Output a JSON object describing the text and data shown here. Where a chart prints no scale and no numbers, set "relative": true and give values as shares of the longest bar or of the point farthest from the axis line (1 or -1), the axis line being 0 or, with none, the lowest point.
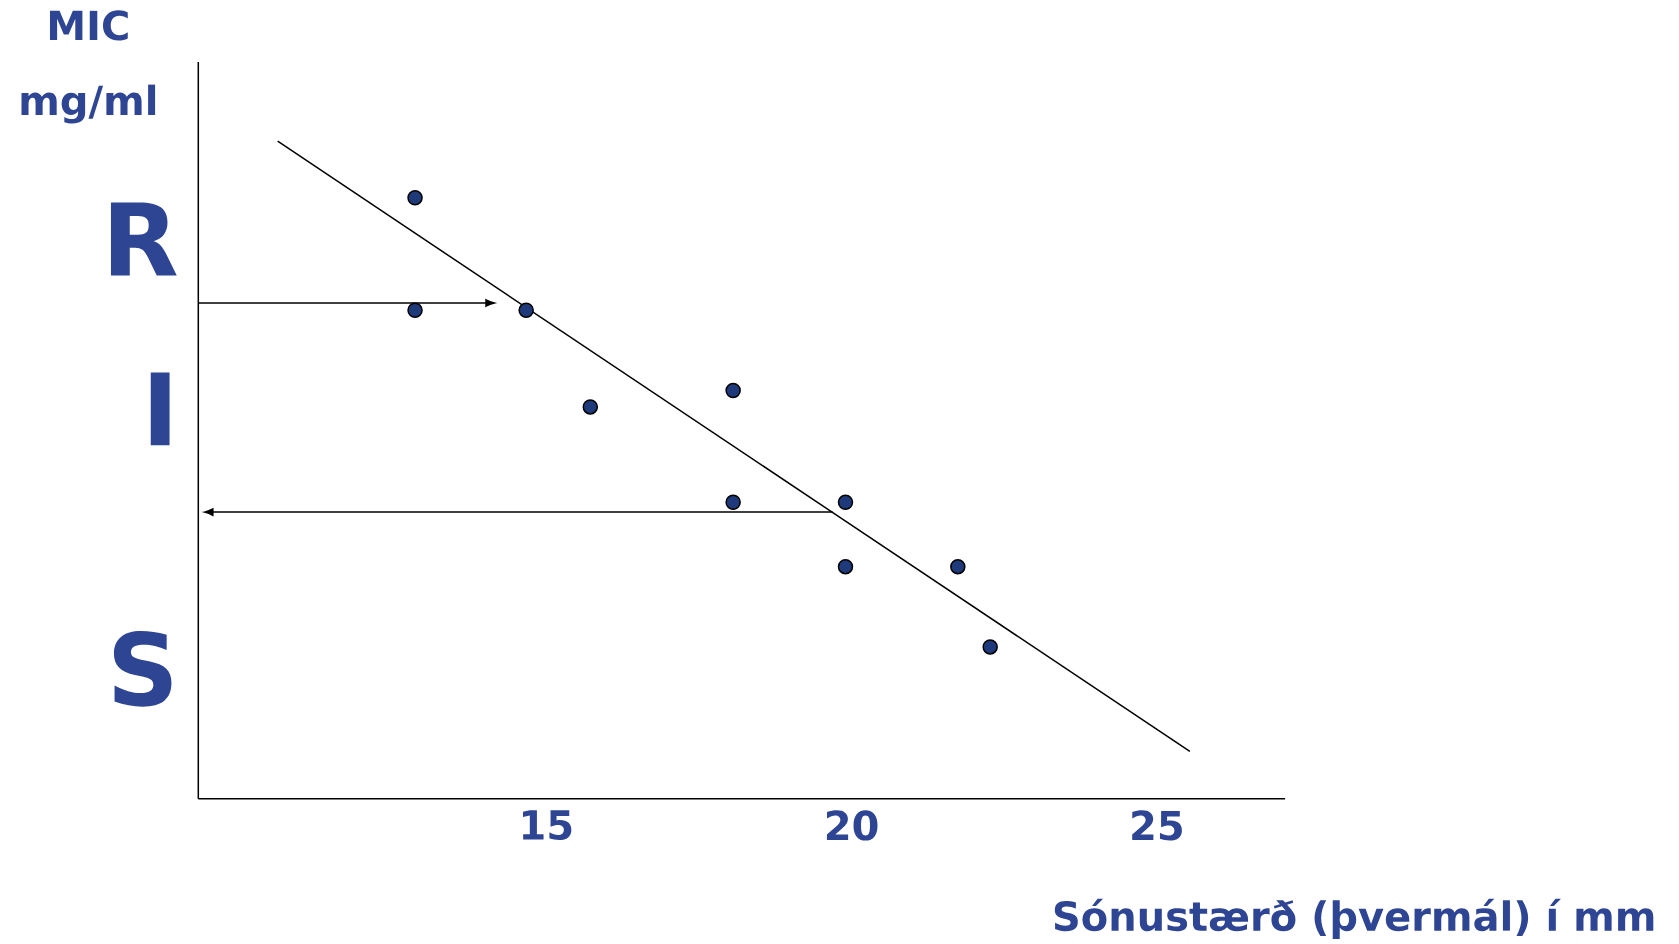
{
  "chart_data": {
    "type": "scatter",
    "relative": true,
    "ylabel": "MIC mg/ml",
    "xlabel": "Sónustærð (þvermál) í mm",
    "xlim": [
      9.3,
      27.1
    ],
    "xticks": [
      15,
      20,
      25
    ],
    "grid": false,
    "annotations": [
      "R",
      "I",
      "S"
    ],
    "series": [
      {
        "color": "#1f3a7a",
        "marker": "circle",
        "x": [
          12.85,
          12.85,
          14.67,
          15.72,
          18.06,
          18.06,
          19.9,
          19.9,
          21.74,
          22.27
        ],
        "values": [
          0.914,
          0.743,
          0.743,
          0.596,
          0.621,
          0.451,
          0.451,
          0.353,
          0.353,
          0.231
        ]
      },
      {
        "type": "line",
        "marker": "none",
        "color": "#000000",
        "x": [
          10.6,
          25.54
        ],
        "values": [
          1.0,
          0.072
        ]
      },
      {
        "type": "line",
        "marker": "none",
        "color": "#000000",
        "x": [
          9.3,
          14.0
        ],
        "values": [
          0.754,
          0.754
        ]
      },
      {
        "type": "line",
        "marker": "none",
        "color": "#000000",
        "x": [
          19.69,
          9.55
        ],
        "values": [
          0.436,
          0.436
        ]
      }
    ]
  }
}
